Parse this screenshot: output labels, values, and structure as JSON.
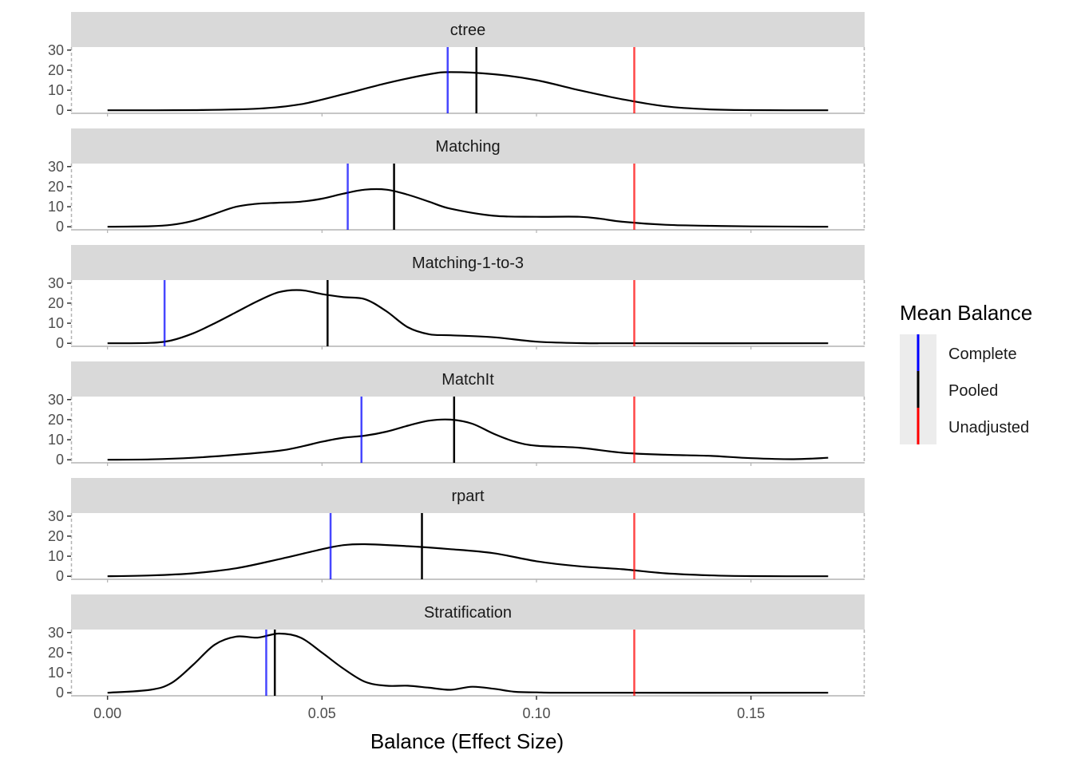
{
  "chart_data": {
    "type": "line",
    "subtype": "faceted-density",
    "title": "",
    "xlabel": "Balance (Effect Size)",
    "ylabel": "",
    "xlim": [
      -0.0085,
      0.1765
    ],
    "ylim": [
      -1.5,
      31.5
    ],
    "xticks": [
      0.0,
      0.05,
      0.1,
      0.15
    ],
    "xtick_labels": [
      "0.00",
      "0.05",
      "0.10",
      "0.15"
    ],
    "yticks": [
      0,
      10,
      20,
      30
    ],
    "ytick_labels": [
      "0",
      "10",
      "20",
      "30"
    ],
    "grid": false,
    "legend": {
      "title": "Mean Balance",
      "placement": "right",
      "entries": [
        {
          "label": "Complete",
          "color": "#0000ff"
        },
        {
          "label": "Pooled",
          "color": "#000000"
        },
        {
          "label": "Unadjusted",
          "color": "#ff0000"
        }
      ]
    },
    "facets": [
      {
        "name": "ctree",
        "complete": 0.0793,
        "pooled": 0.086,
        "unadjusted": 0.1228,
        "x": [
          0.0,
          0.02,
          0.035,
          0.045,
          0.055,
          0.065,
          0.075,
          0.08,
          0.09,
          0.1,
          0.11,
          0.12,
          0.13,
          0.14,
          0.15,
          0.168
        ],
        "y": [
          0,
          0.1,
          0.8,
          3,
          8,
          13.5,
          18,
          19,
          18,
          15,
          10,
          5.5,
          2,
          0.5,
          0.1,
          0
        ]
      },
      {
        "name": "Matching",
        "complete": 0.056,
        "pooled": 0.0668,
        "unadjusted": 0.1228,
        "x": [
          0.0,
          0.01,
          0.015,
          0.02,
          0.025,
          0.03,
          0.035,
          0.04,
          0.045,
          0.05,
          0.055,
          0.06,
          0.065,
          0.07,
          0.075,
          0.08,
          0.09,
          0.1,
          0.11,
          0.115,
          0.12,
          0.13,
          0.14,
          0.15,
          0.168
        ],
        "y": [
          0,
          0.3,
          1,
          3,
          6.5,
          10,
          11.5,
          12,
          12.5,
          14,
          16.5,
          18.5,
          18.5,
          16,
          12.5,
          9,
          5.5,
          5,
          5,
          4,
          2.5,
          1,
          0.5,
          0.2,
          0
        ]
      },
      {
        "name": "Matching-1-to-3",
        "complete": 0.0133,
        "pooled": 0.0513,
        "unadjusted": 0.1228,
        "x": [
          0.0,
          0.01,
          0.015,
          0.02,
          0.025,
          0.03,
          0.035,
          0.04,
          0.045,
          0.05,
          0.055,
          0.06,
          0.065,
          0.07,
          0.075,
          0.08,
          0.09,
          0.1,
          0.11,
          0.12,
          0.168
        ],
        "y": [
          0,
          0.2,
          1.5,
          5,
          10,
          15.5,
          21,
          25.5,
          26.5,
          24.5,
          23,
          22,
          16,
          8,
          4.5,
          4,
          3,
          0.8,
          0.1,
          0,
          0
        ]
      },
      {
        "name": "MatchIt",
        "complete": 0.0592,
        "pooled": 0.0808,
        "unadjusted": 0.1228,
        "x": [
          0.0,
          0.01,
          0.02,
          0.03,
          0.04,
          0.045,
          0.05,
          0.055,
          0.06,
          0.065,
          0.07,
          0.075,
          0.08,
          0.085,
          0.09,
          0.095,
          0.1,
          0.11,
          0.12,
          0.13,
          0.14,
          0.15,
          0.16,
          0.168
        ],
        "y": [
          0,
          0.2,
          1,
          2.5,
          4.5,
          6.5,
          9,
          11,
          12,
          14,
          17,
          19.5,
          20,
          18,
          13,
          9,
          7,
          6,
          3.5,
          2.5,
          2,
          0.8,
          0.3,
          1
        ]
      },
      {
        "name": "rpart",
        "complete": 0.052,
        "pooled": 0.0733,
        "unadjusted": 0.1228,
        "x": [
          0.0,
          0.01,
          0.02,
          0.03,
          0.04,
          0.05,
          0.055,
          0.06,
          0.07,
          0.08,
          0.09,
          0.1,
          0.11,
          0.12,
          0.13,
          0.14,
          0.15,
          0.168
        ],
        "y": [
          0,
          0.4,
          1.5,
          4,
          8.5,
          13.5,
          15.5,
          16,
          15,
          13.5,
          11.5,
          7.5,
          5,
          3.5,
          1.5,
          0.5,
          0.1,
          0
        ]
      },
      {
        "name": "Stratification",
        "complete": 0.037,
        "pooled": 0.039,
        "unadjusted": 0.1228,
        "x": [
          0.0,
          0.01,
          0.015,
          0.02,
          0.025,
          0.03,
          0.035,
          0.04,
          0.045,
          0.05,
          0.055,
          0.06,
          0.065,
          0.07,
          0.075,
          0.08,
          0.085,
          0.09,
          0.095,
          0.1,
          0.11,
          0.168
        ],
        "y": [
          0,
          1.5,
          5,
          14,
          24,
          28,
          27.5,
          29.5,
          27.5,
          20,
          12,
          5.5,
          3.5,
          3.5,
          2.5,
          1.5,
          3,
          2,
          0.5,
          0.2,
          0,
          0
        ]
      }
    ]
  },
  "colors": {
    "complete": "#0000ff",
    "pooled": "#000000",
    "unadjusted": "#ff0000",
    "strip_bg": "#d9d9d9",
    "axis": "#b3b3b3"
  }
}
